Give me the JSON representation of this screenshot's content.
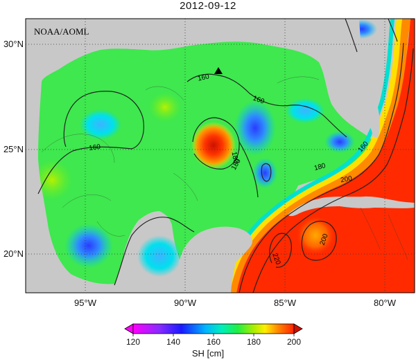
{
  "title": "2012-09-12",
  "credit": "NOAA/AOML",
  "map": {
    "type": "filled-contour-map",
    "variable_label": "SH [cm]",
    "lon_range": [
      -98,
      -78.5
    ],
    "lat_range": [
      18,
      31
    ],
    "lat_ticks": [
      {
        "value": 30,
        "label": "30°N"
      },
      {
        "value": 25,
        "label": "25°N"
      },
      {
        "value": 20,
        "label": "20°N"
      }
    ],
    "lon_ticks": [
      {
        "value": -95,
        "label": "95°W"
      },
      {
        "value": -90,
        "label": "90°W"
      },
      {
        "value": -85,
        "label": "85°W"
      },
      {
        "value": -80,
        "label": "80°W"
      }
    ],
    "contour_labels": [
      "160",
      "160",
      "160",
      "180",
      "180",
      "200",
      "200",
      "220",
      "160",
      "180"
    ],
    "marker": {
      "shape": "triangle",
      "lon": -88.4,
      "lat": 28.8
    },
    "colorbar": {
      "min": 120,
      "max": 200,
      "ticks": [
        "120",
        "140",
        "160",
        "180",
        "200"
      ],
      "colors": [
        "#ff00ff",
        "#1a1aff",
        "#00ccff",
        "#00ff44",
        "#ffff00",
        "#ff8800",
        "#ff2200"
      ]
    },
    "land_color": "#c8c8c8",
    "grid": "dotted"
  }
}
